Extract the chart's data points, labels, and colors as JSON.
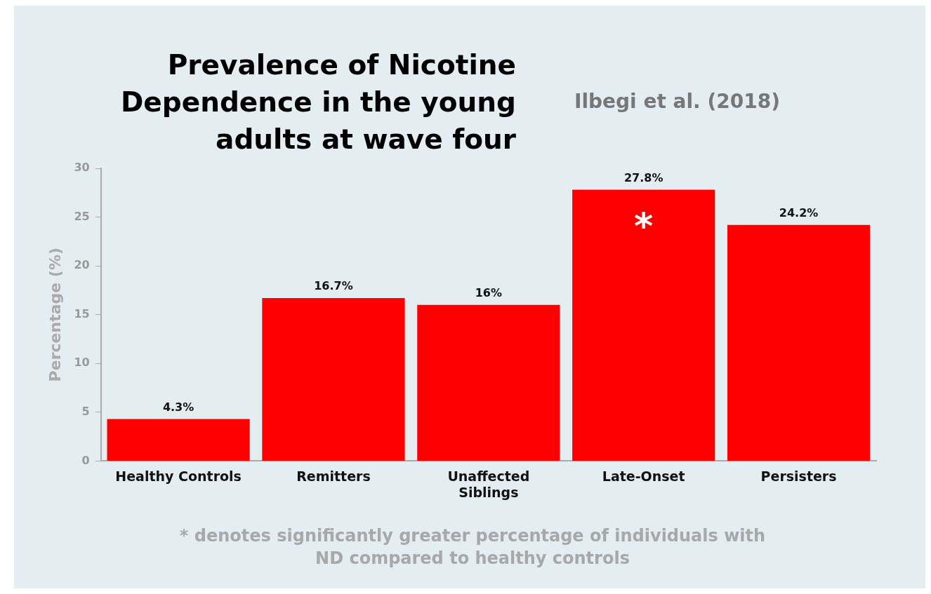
{
  "chart_data": {
    "type": "bar",
    "title": "Prevalence of Nicotine Dependence in the young adults at wave four",
    "ylabel": "Percentage (%)",
    "categories": [
      "Healthy Controls",
      "Remitters",
      "Unaffected Siblings",
      "Late-Onset",
      "Persisters"
    ],
    "values": [
      4.3,
      16.7,
      16,
      27.8,
      24.2
    ],
    "value_labels": [
      "4.3%",
      "16.7%",
      "16%",
      "27.8%",
      "24.2%"
    ],
    "color": "#ff0000",
    "ylim": [
      0,
      30
    ],
    "yticks": [
      0,
      5,
      10,
      15,
      20,
      25,
      30
    ],
    "grid": false,
    "legend": false,
    "annotations": [
      "Ilbegi et al. (2018)",
      "*",
      "* denotes significantly greater percentage of individuals with ND compared to healthy controls"
    ]
  }
}
